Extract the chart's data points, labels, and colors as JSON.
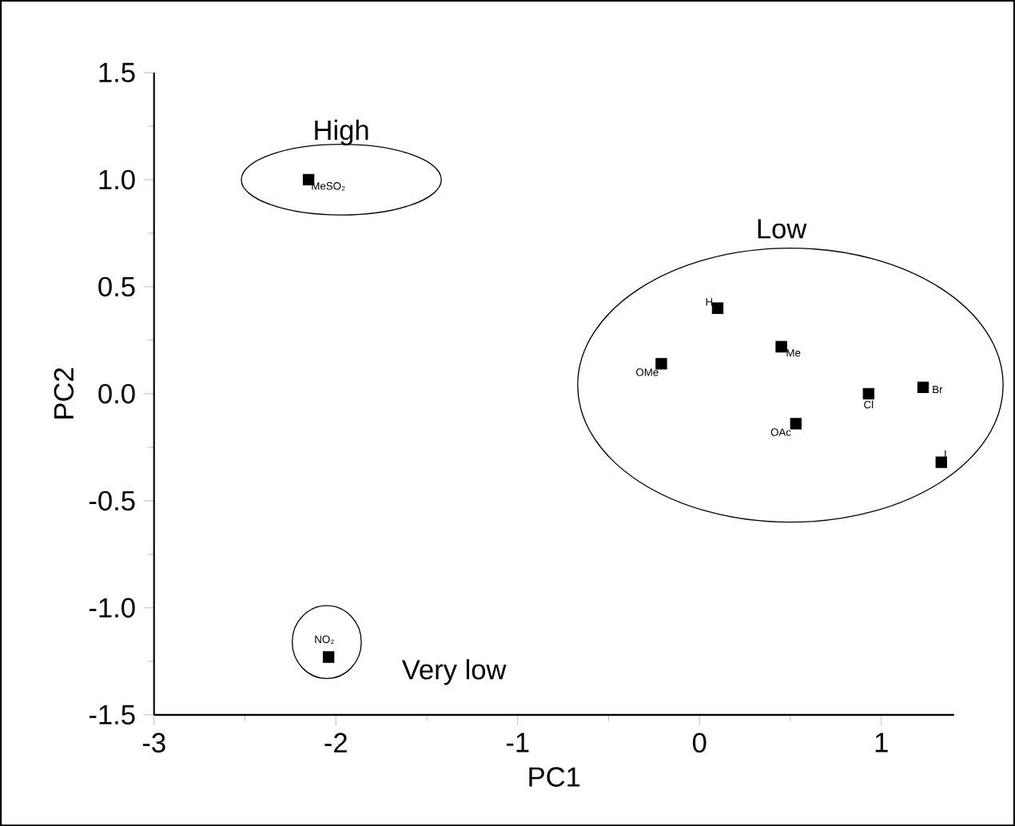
{
  "chart_data": {
    "type": "scatter",
    "xlabel": "PC1",
    "ylabel": "PC2",
    "x": [
      -2.15,
      -2.04,
      0.1,
      0.45,
      -0.21,
      0.53,
      0.93,
      1.23,
      1.33
    ],
    "values": [
      1.0,
      -1.23,
      0.4,
      0.22,
      0.14,
      -0.14,
      0.0,
      0.03,
      -0.32
    ],
    "color": "#000000",
    "marker": "square",
    "grid": false,
    "xlim": [
      -3,
      1.4
    ],
    "ylim": [
      -1.5,
      1.5
    ],
    "xticks": [
      -3,
      -2,
      -1,
      0,
      1
    ],
    "yticks": [
      -1.5,
      {
        "value": -1,
        "label": "-1.0"
      },
      -0.5,
      {
        "value": 0,
        "label": "0.0"
      },
      0.5,
      {
        "value": 1,
        "label": "1.0"
      },
      1.5
    ],
    "annotations": [
      {
        "text": "MeSO₂",
        "x": -2.15,
        "y": 1.0
      },
      {
        "text": "NO₂",
        "x": -2.04,
        "y": -1.23
      },
      {
        "text": "H",
        "x": 0.1,
        "y": 0.4
      },
      {
        "text": "Me",
        "x": 0.45,
        "y": 0.22
      },
      {
        "text": "OMe",
        "x": -0.21,
        "y": 0.14
      },
      {
        "text": "OAc",
        "x": 0.53,
        "y": -0.14
      },
      {
        "text": "Cl",
        "x": 0.93,
        "y": 0.0
      },
      {
        "text": "Br",
        "x": 1.23,
        "y": 0.03
      },
      {
        "text": "I",
        "x": 1.33,
        "y": -0.32
      },
      "High",
      "Low",
      "Very low"
    ]
  }
}
